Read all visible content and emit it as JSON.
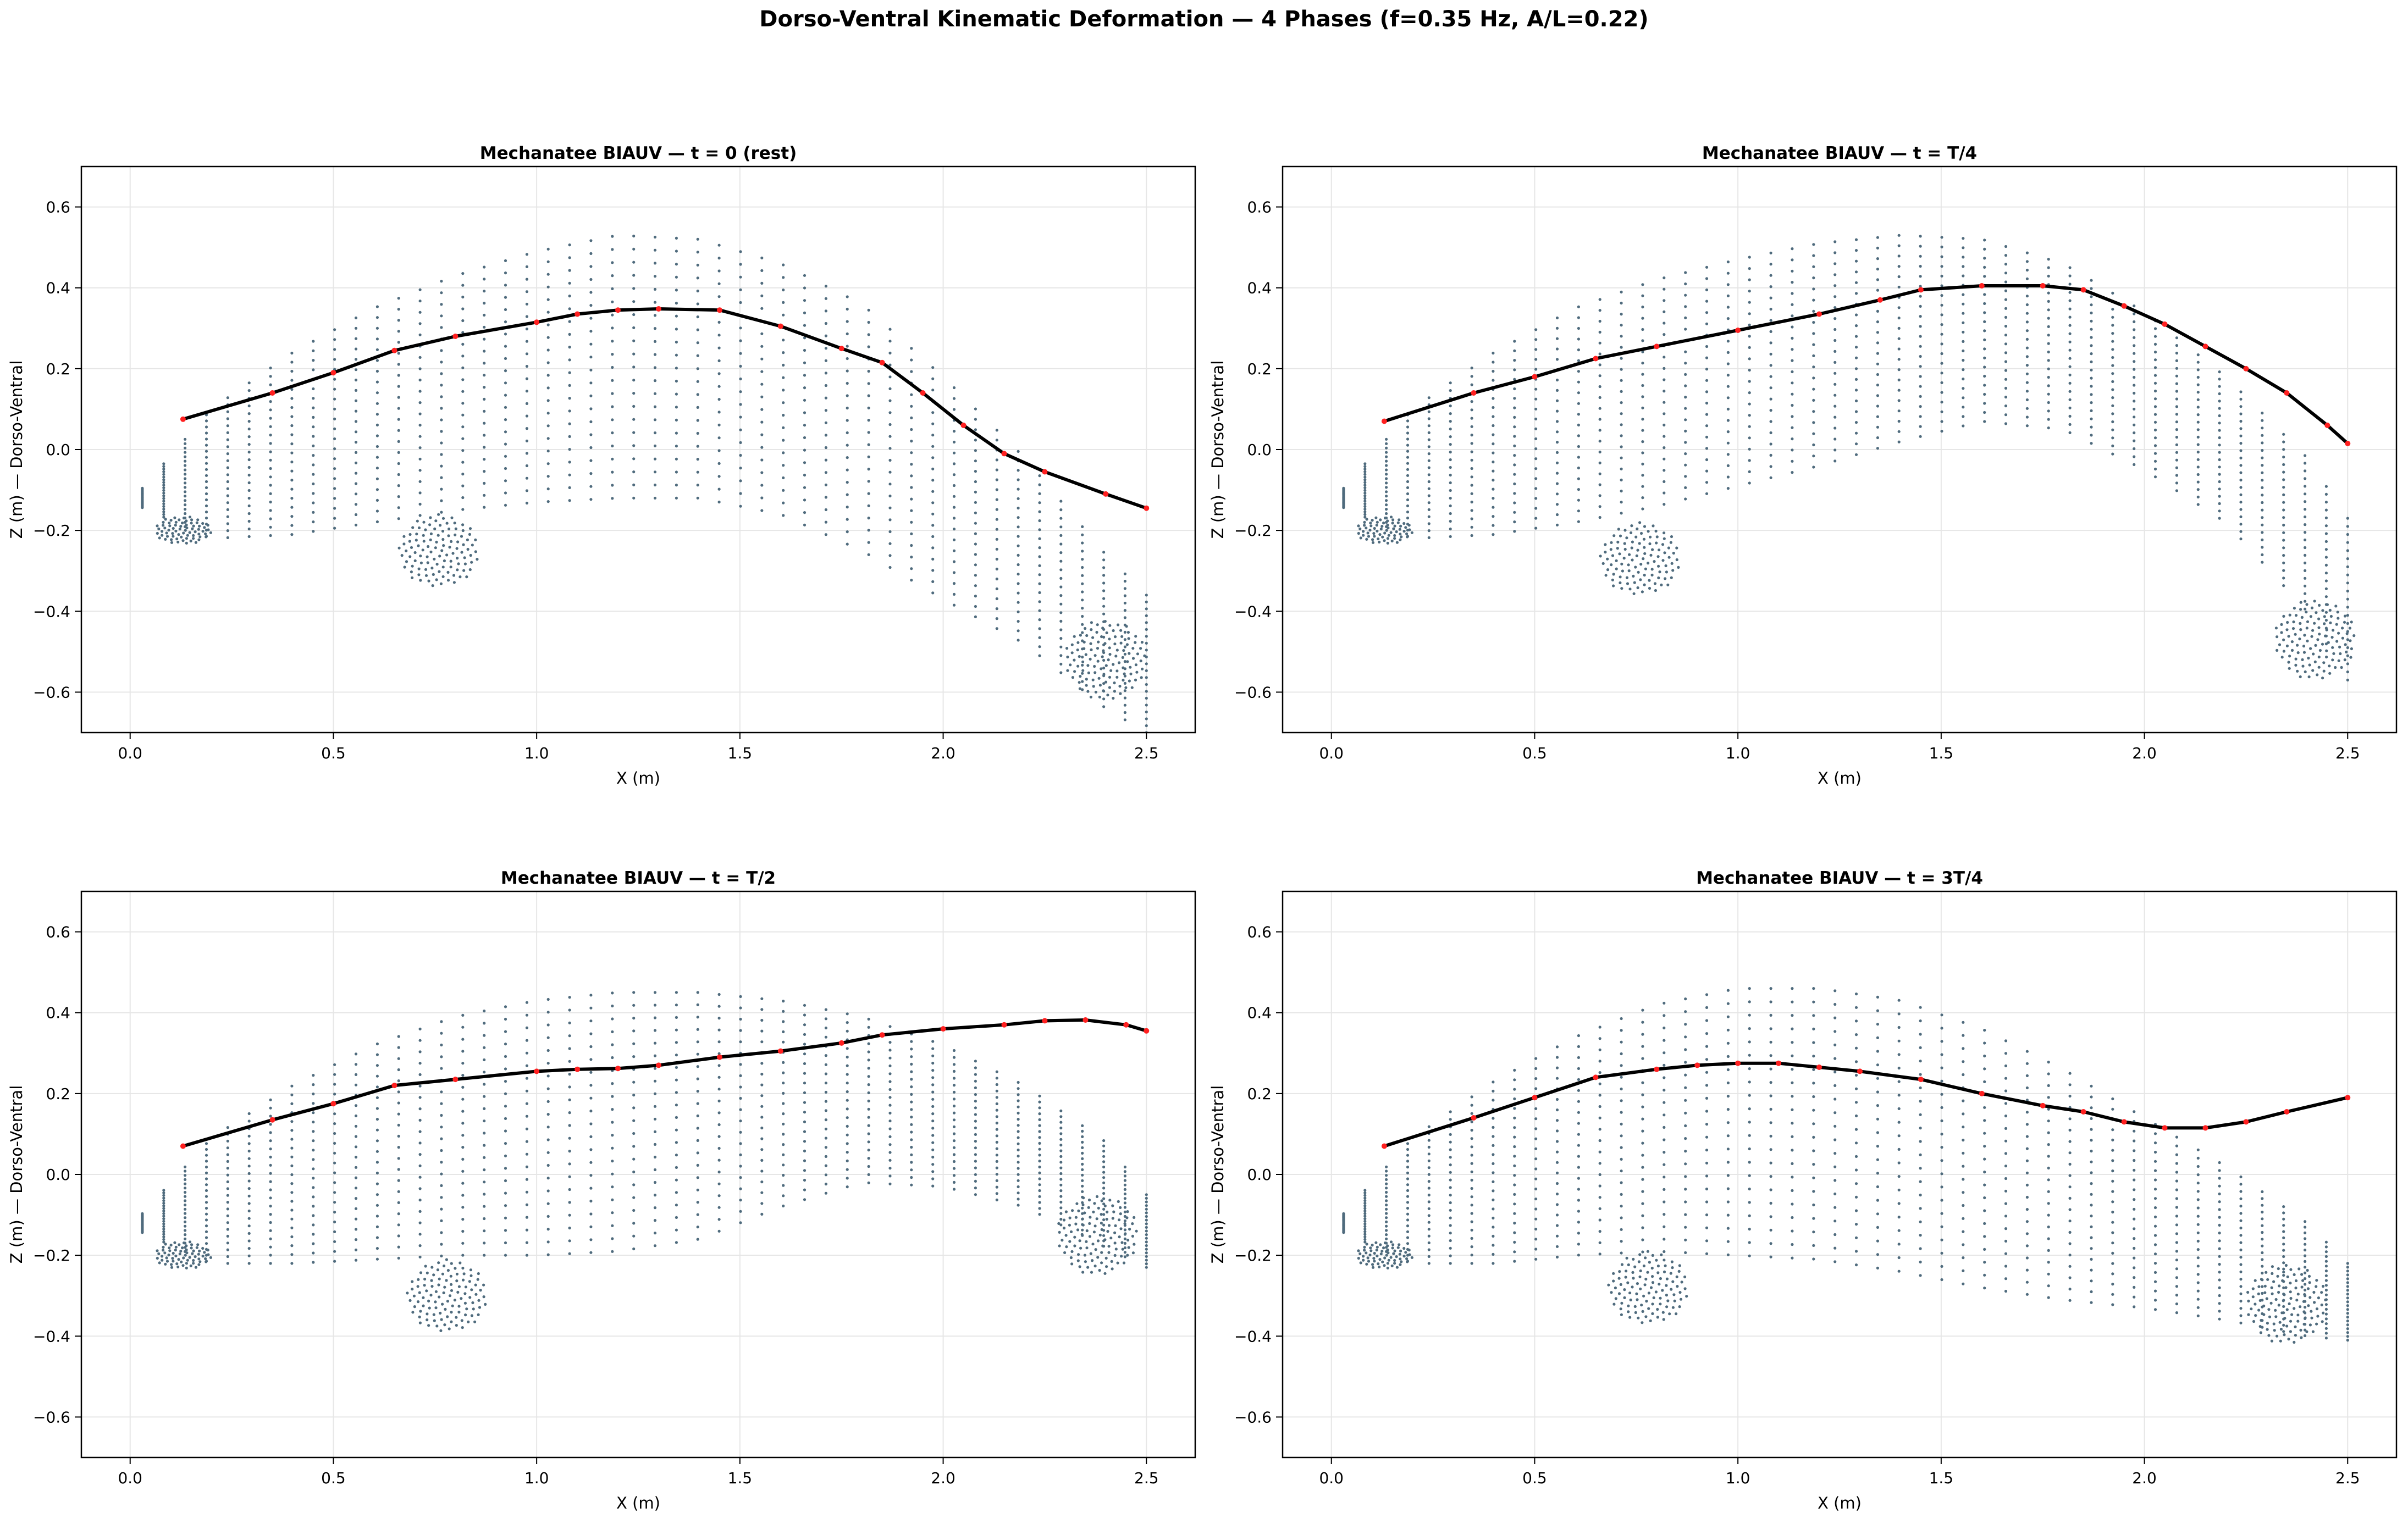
{
  "suptitle": "Dorso-Ventral Kinematic Deformation — 4 Phases (f=0.35 Hz, A/L=0.22)",
  "colors": {
    "cloud": "#4f6b7d",
    "spine_line": "#000000",
    "spine_nodes": "#ff2020",
    "grid": "#e6e6e6"
  },
  "chart_data": [
    {
      "type": "scatter",
      "title": "Mechanatee BIAUV — t = 0 (rest)",
      "xlabel": "X (m)",
      "ylabel": "Z (m) — Dorso-Ventral",
      "xlim": [
        -0.12,
        2.62
      ],
      "ylim": [
        -0.7,
        0.7
      ],
      "xticks": [
        0.0,
        0.5,
        1.0,
        1.5,
        2.0,
        2.5
      ],
      "yticks": [
        -0.6,
        -0.4,
        -0.2,
        0.0,
        0.2,
        0.4,
        0.6
      ],
      "grid": true,
      "series": [
        {
          "role": "spine",
          "x": [
            0.13,
            0.35,
            0.5,
            0.65,
            0.8,
            1.0,
            1.1,
            1.2,
            1.3,
            1.45,
            1.6,
            1.75,
            1.85,
            1.95,
            2.05,
            2.15,
            2.25,
            2.4,
            2.5
          ],
          "y": [
            0.075,
            0.14,
            0.19,
            0.245,
            0.28,
            0.315,
            0.335,
            0.345,
            0.348,
            0.345,
            0.305,
            0.25,
            0.215,
            0.14,
            0.06,
            -0.01,
            -0.055,
            -0.11,
            -0.145
          ]
        },
        {
          "role": "body-cloud",
          "x": [
            0.0,
            0.2,
            0.4,
            0.6,
            0.8,
            1.0,
            1.2,
            1.4,
            1.6,
            1.8,
            2.0,
            2.2,
            2.4,
            2.5
          ],
          "upper": [
            -0.13,
            0.1,
            0.24,
            0.35,
            0.43,
            0.49,
            0.53,
            0.52,
            0.46,
            0.36,
            0.18,
            -0.02,
            -0.26,
            -0.36
          ],
          "lower": [
            -0.13,
            -0.22,
            -0.21,
            -0.18,
            -0.15,
            -0.13,
            -0.12,
            -0.12,
            -0.16,
            -0.25,
            -0.37,
            -0.48,
            -0.64,
            -0.7
          ],
          "fin": {
            "x": 0.8,
            "y": -0.34
          },
          "tail": {
            "x": 2.4,
            "y": -0.52
          }
        }
      ]
    },
    {
      "type": "scatter",
      "title": "Mechanatee BIAUV — t = T/4",
      "xlabel": "X (m)",
      "ylabel": "Z (m) — Dorso-Ventral",
      "xlim": [
        -0.12,
        2.62
      ],
      "ylim": [
        -0.7,
        0.7
      ],
      "xticks": [
        0.0,
        0.5,
        1.0,
        1.5,
        2.0,
        2.5
      ],
      "yticks": [
        -0.6,
        -0.4,
        -0.2,
        0.0,
        0.2,
        0.4,
        0.6
      ],
      "grid": true,
      "series": [
        {
          "role": "spine",
          "x": [
            0.13,
            0.35,
            0.5,
            0.65,
            0.8,
            1.0,
            1.2,
            1.35,
            1.45,
            1.6,
            1.75,
            1.85,
            1.95,
            2.05,
            2.15,
            2.25,
            2.35,
            2.45,
            2.5
          ],
          "y": [
            0.07,
            0.14,
            0.18,
            0.225,
            0.255,
            0.295,
            0.335,
            0.37,
            0.395,
            0.405,
            0.405,
            0.395,
            0.355,
            0.31,
            0.255,
            0.2,
            0.14,
            0.06,
            0.015
          ]
        },
        {
          "role": "body-cloud",
          "x": [
            0.0,
            0.2,
            0.4,
            0.6,
            0.8,
            1.0,
            1.2,
            1.4,
            1.6,
            1.8,
            2.0,
            2.2,
            2.4,
            2.5
          ],
          "upper": [
            -0.13,
            0.1,
            0.24,
            0.35,
            0.42,
            0.47,
            0.51,
            0.53,
            0.52,
            0.46,
            0.34,
            0.18,
            -0.02,
            -0.17
          ],
          "lower": [
            -0.13,
            -0.22,
            -0.21,
            -0.18,
            -0.14,
            -0.09,
            -0.04,
            0.02,
            0.07,
            0.05,
            -0.05,
            -0.18,
            -0.4,
            -0.57
          ],
          "fin": {
            "x": 0.8,
            "y": -0.36
          },
          "tail": {
            "x": 2.42,
            "y": -0.47
          }
        }
      ]
    },
    {
      "type": "scatter",
      "title": "Mechanatee BIAUV — t = T/2",
      "xlabel": "X (m)",
      "ylabel": "Z (m) — Dorso-Ventral",
      "xlim": [
        -0.12,
        2.62
      ],
      "ylim": [
        -0.7,
        0.7
      ],
      "xticks": [
        0.0,
        0.5,
        1.0,
        1.5,
        2.0,
        2.5
      ],
      "yticks": [
        -0.6,
        -0.4,
        -0.2,
        0.0,
        0.2,
        0.4,
        0.6
      ],
      "grid": true,
      "series": [
        {
          "role": "spine",
          "x": [
            0.13,
            0.35,
            0.5,
            0.65,
            0.8,
            1.0,
            1.1,
            1.2,
            1.3,
            1.45,
            1.6,
            1.75,
            1.85,
            2.0,
            2.15,
            2.25,
            2.35,
            2.45,
            2.5
          ],
          "y": [
            0.07,
            0.135,
            0.175,
            0.22,
            0.235,
            0.255,
            0.26,
            0.262,
            0.27,
            0.29,
            0.305,
            0.325,
            0.345,
            0.36,
            0.37,
            0.38,
            0.382,
            0.37,
            0.355
          ]
        },
        {
          "role": "body-cloud",
          "x": [
            0.0,
            0.2,
            0.4,
            0.6,
            0.8,
            1.0,
            1.2,
            1.4,
            1.6,
            1.8,
            2.0,
            2.2,
            2.4,
            2.5
          ],
          "upper": [
            -0.13,
            0.09,
            0.22,
            0.32,
            0.39,
            0.43,
            0.45,
            0.45,
            0.43,
            0.39,
            0.32,
            0.22,
            0.08,
            -0.05
          ],
          "lower": [
            -0.13,
            -0.22,
            -0.22,
            -0.21,
            -0.2,
            -0.2,
            -0.19,
            -0.16,
            -0.08,
            -0.02,
            -0.03,
            -0.08,
            -0.18,
            -0.23
          ],
          "fin": {
            "x": 0.82,
            "y": -0.39
          },
          "tail": {
            "x": 2.38,
            "y": -0.15
          }
        }
      ]
    },
    {
      "type": "scatter",
      "title": "Mechanatee BIAUV — t = 3T/4",
      "xlabel": "X (m)",
      "ylabel": "Z (m) — Dorso-Ventral",
      "xlim": [
        -0.12,
        2.62
      ],
      "ylim": [
        -0.7,
        0.7
      ],
      "xticks": [
        0.0,
        0.5,
        1.0,
        1.5,
        2.0,
        2.5
      ],
      "yticks": [
        -0.6,
        -0.4,
        -0.2,
        0.0,
        0.2,
        0.4,
        0.6
      ],
      "grid": true,
      "series": [
        {
          "role": "spine",
          "x": [
            0.13,
            0.35,
            0.5,
            0.65,
            0.8,
            0.9,
            1.0,
            1.1,
            1.2,
            1.3,
            1.45,
            1.6,
            1.75,
            1.85,
            1.95,
            2.05,
            2.15,
            2.25,
            2.35,
            2.5
          ],
          "y": [
            0.07,
            0.14,
            0.19,
            0.24,
            0.26,
            0.27,
            0.275,
            0.275,
            0.265,
            0.255,
            0.235,
            0.2,
            0.17,
            0.155,
            0.13,
            0.115,
            0.115,
            0.13,
            0.155,
            0.19
          ]
        },
        {
          "role": "body-cloud",
          "x": [
            0.0,
            0.2,
            0.4,
            0.6,
            0.8,
            1.0,
            1.2,
            1.4,
            1.6,
            1.8,
            2.0,
            2.2,
            2.4,
            2.5
          ],
          "upper": [
            -0.13,
            0.09,
            0.23,
            0.34,
            0.42,
            0.46,
            0.46,
            0.43,
            0.36,
            0.26,
            0.14,
            0.02,
            -0.12,
            -0.22
          ],
          "lower": [
            -0.13,
            -0.22,
            -0.22,
            -0.2,
            -0.19,
            -0.2,
            -0.21,
            -0.24,
            -0.28,
            -0.31,
            -0.33,
            -0.36,
            -0.4,
            -0.41
          ],
          "fin": {
            "x": 0.82,
            "y": -0.37
          },
          "tail": {
            "x": 2.35,
            "y": -0.32
          }
        }
      ]
    }
  ]
}
